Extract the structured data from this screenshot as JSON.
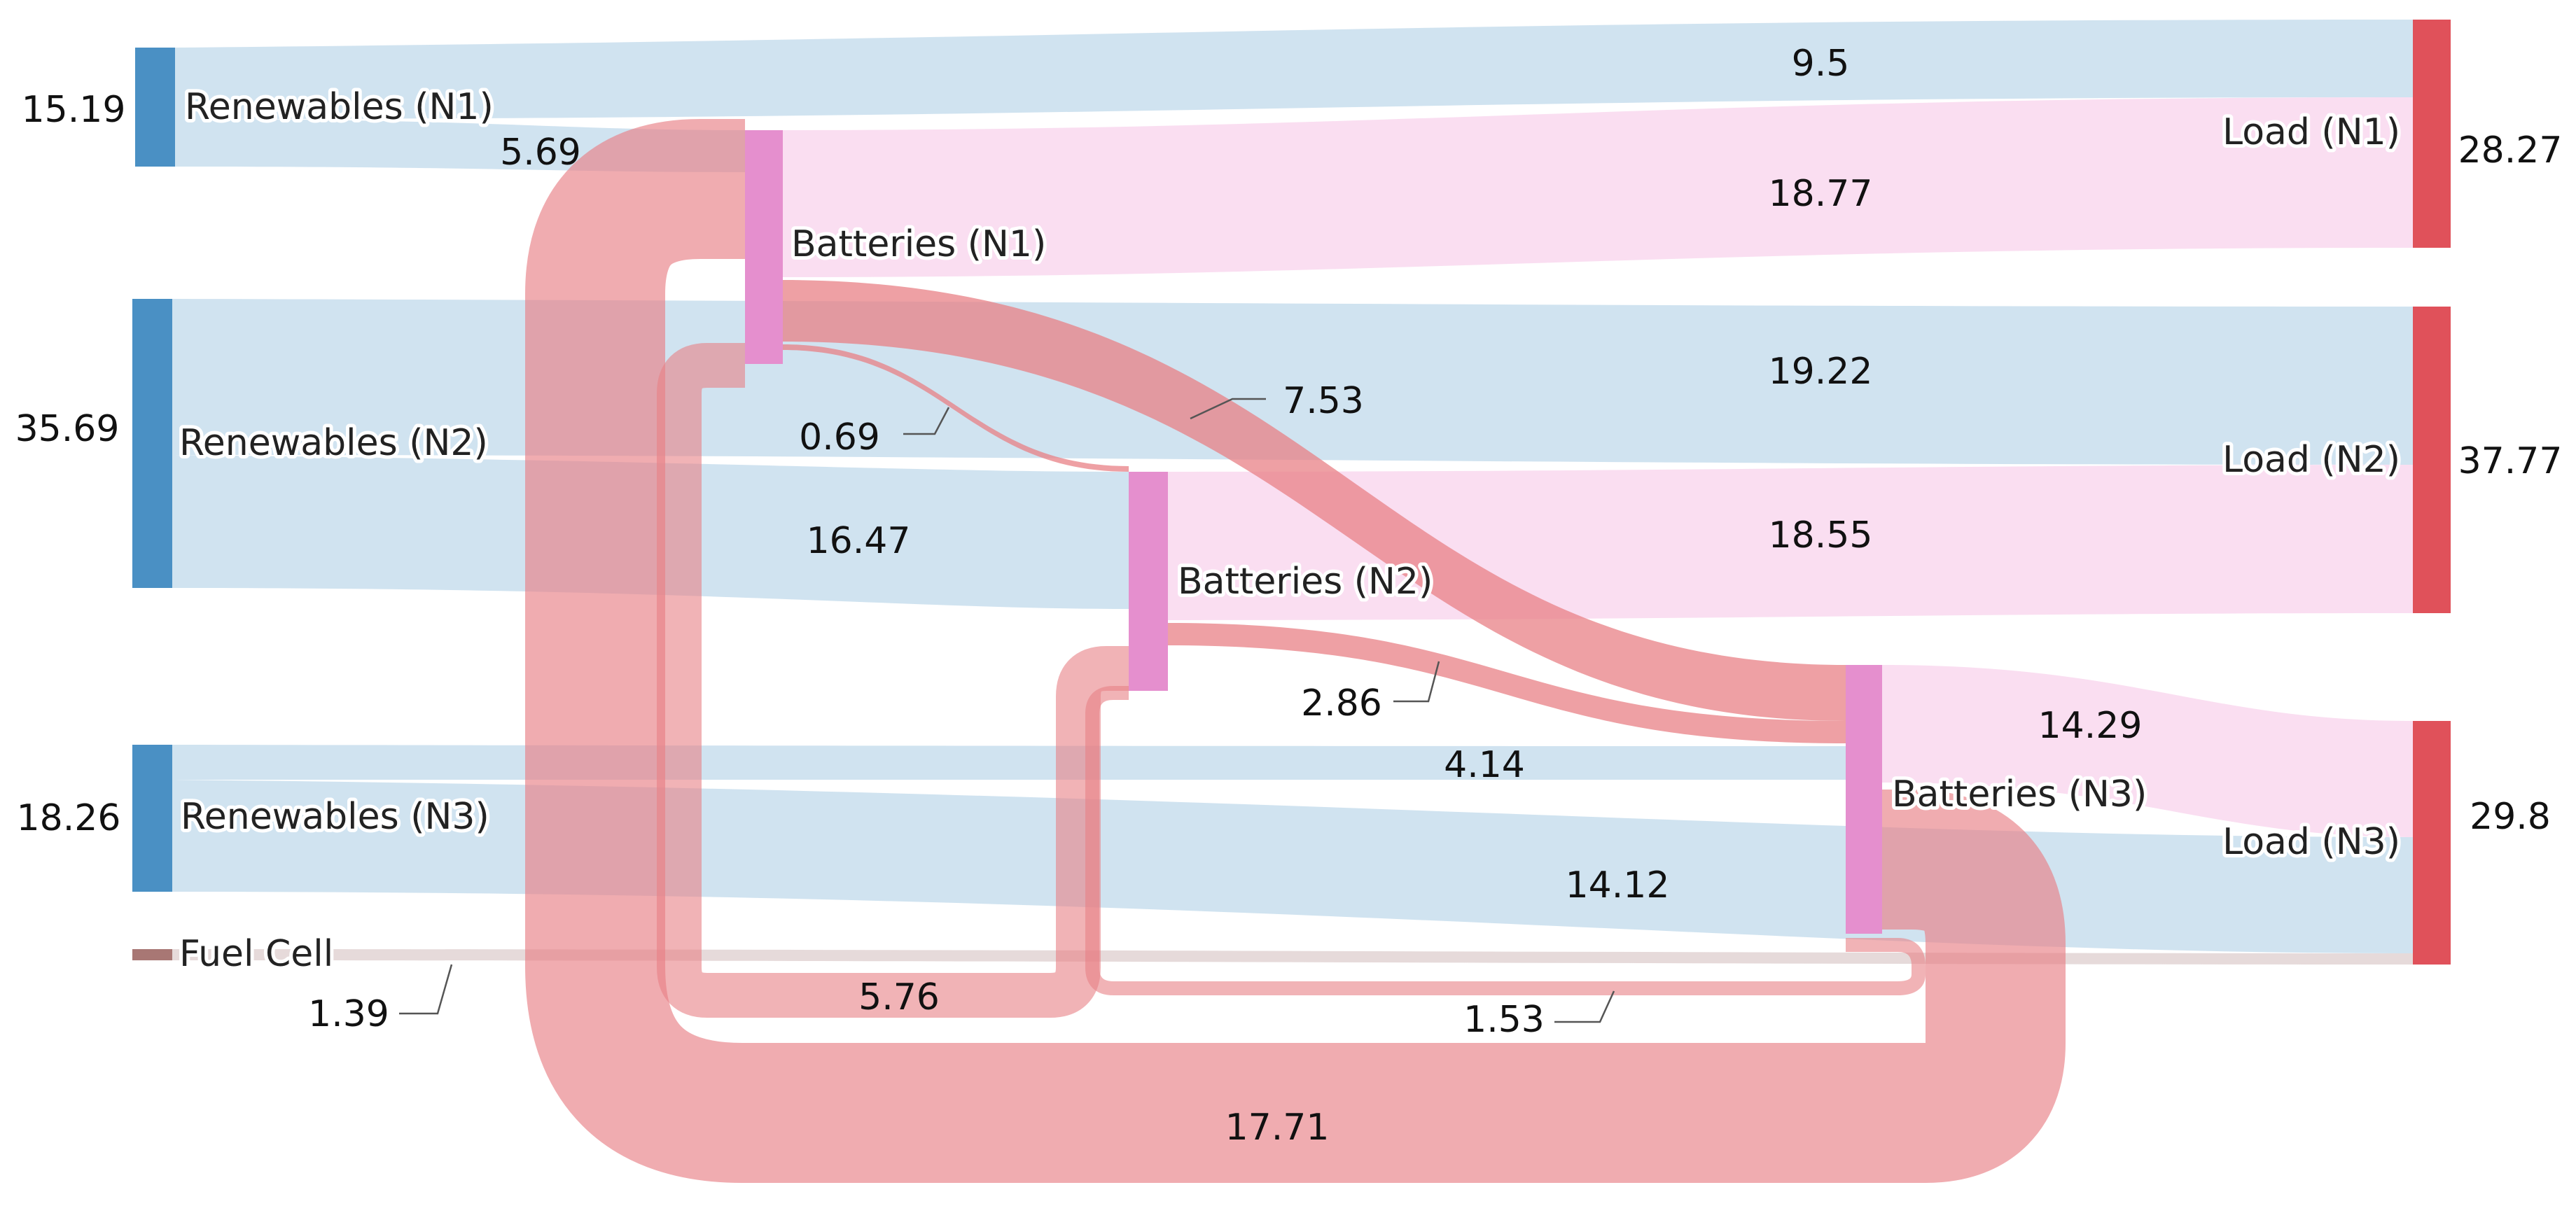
{
  "colors": {
    "renewables": "#4a90c4",
    "batteries": "#e58fce",
    "load": "#e0515a",
    "fuel_cell": "#a87774",
    "renewable_flow": "#a9cce3",
    "battery_to_load_flow": "#f8d3ec",
    "battery_flow": "#e88085",
    "fuel_cell_flow": "#dccaca"
  },
  "nodes": [
    {
      "id": "ren_n1",
      "label": "Renewables (N1)",
      "value_label": "15.19",
      "group": "renewables"
    },
    {
      "id": "ren_n2",
      "label": "Renewables (N2)",
      "value_label": "35.69",
      "group": "renewables"
    },
    {
      "id": "ren_n3",
      "label": "Renewables (N3)",
      "value_label": "18.26",
      "group": "renewables"
    },
    {
      "id": "fuel_cell",
      "label": "Fuel Cell",
      "value_label": "",
      "group": "fuel_cell"
    },
    {
      "id": "bat_n1",
      "label": "Batteries (N1)",
      "value_label": "",
      "group": "batteries"
    },
    {
      "id": "bat_n2",
      "label": "Batteries (N2)",
      "value_label": "",
      "group": "batteries"
    },
    {
      "id": "bat_n3",
      "label": "Batteries (N3)",
      "value_label": "",
      "group": "batteries"
    },
    {
      "id": "load_n1",
      "label": "Load (N1)",
      "value_label": "28.27",
      "group": "load"
    },
    {
      "id": "load_n2",
      "label": "Load (N2)",
      "value_label": "37.77",
      "group": "load"
    },
    {
      "id": "load_n3",
      "label": "Load (N3)",
      "value_label": "29.8",
      "group": "load"
    }
  ],
  "links": [
    {
      "id": "l_r1_load1",
      "source": "ren_n1",
      "target": "load_n1",
      "value": 9.5,
      "label": "9.5"
    },
    {
      "id": "l_r1_bat1",
      "source": "ren_n1",
      "target": "bat_n1",
      "value": 5.69,
      "label": "5.69"
    },
    {
      "id": "l_bat1_load1",
      "source": "bat_n1",
      "target": "load_n1",
      "value": 18.77,
      "label": "18.77"
    },
    {
      "id": "l_r2_load2",
      "source": "ren_n2",
      "target": "load_n2",
      "value": 19.22,
      "label": "19.22"
    },
    {
      "id": "l_r2_bat2",
      "source": "ren_n2",
      "target": "bat_n2",
      "value": 16.47,
      "label": "16.47"
    },
    {
      "id": "l_bat2_load2",
      "source": "bat_n2",
      "target": "load_n2",
      "value": 18.55,
      "label": "18.55"
    },
    {
      "id": "l_bat1_bat3",
      "source": "bat_n1",
      "target": "bat_n3",
      "value": 7.53,
      "label": "7.53"
    },
    {
      "id": "l_bat1_bat2",
      "source": "bat_n1",
      "target": "bat_n2",
      "value": 0.69,
      "label": "0.69"
    },
    {
      "id": "l_bat2_bat3",
      "source": "bat_n2",
      "target": "bat_n3",
      "value": 2.86,
      "label": "2.86"
    },
    {
      "id": "l_r3_bat3",
      "source": "ren_n3",
      "target": "bat_n3",
      "value": 4.14,
      "label": "4.14"
    },
    {
      "id": "l_r3_load3",
      "source": "ren_n3",
      "target": "load_n3",
      "value": 14.12,
      "label": "14.12"
    },
    {
      "id": "l_bat3_load3",
      "source": "bat_n3",
      "target": "load_n3",
      "value": 14.29,
      "label": "14.29"
    },
    {
      "id": "l_fuel_load3",
      "source": "fuel_cell",
      "target": "load_n3",
      "value": 1.39,
      "label": "1.39"
    },
    {
      "id": "l_bat2_bat1",
      "source": "bat_n2",
      "target": "bat_n1",
      "value": 5.76,
      "label": "5.76"
    },
    {
      "id": "l_bat3_bat2",
      "source": "bat_n3",
      "target": "bat_n2",
      "value": 1.53,
      "label": "1.53"
    },
    {
      "id": "l_bat3_bat1",
      "source": "bat_n3",
      "target": "bat_n1",
      "value": 17.71,
      "label": "17.71"
    }
  ]
}
